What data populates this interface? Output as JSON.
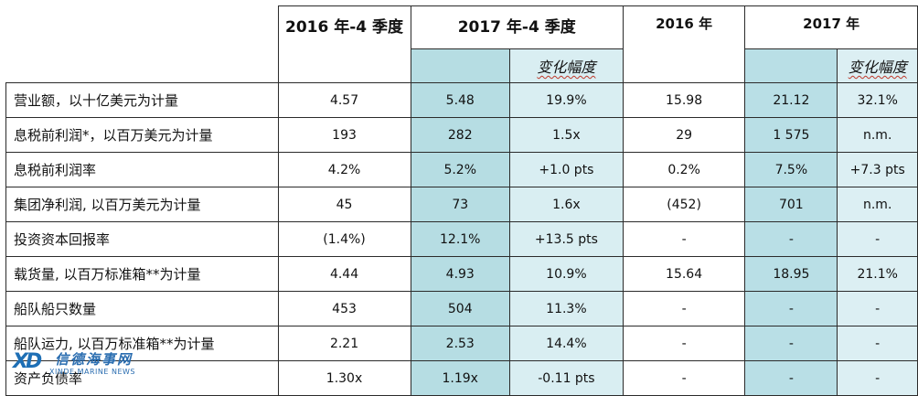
{
  "header": {
    "col_q4_2016": "2016 年-4 季度",
    "col_q4_2017": "2017 年-4 季度",
    "col_2016": "2016 年",
    "col_2017": "2017 年",
    "change_label_q": "变化幅度",
    "change_label_y": "变化幅度"
  },
  "rows": [
    {
      "label": "营业额，以十亿美元为计量",
      "q16": "4.57",
      "q17": "5.48",
      "qchg": "19.9%",
      "y16": "15.98",
      "y17": "21.12",
      "ychg": "32.1%"
    },
    {
      "label": "息税前利润*，以百万美元为计量",
      "q16": "193",
      "q17": "282",
      "qchg": "1.5x",
      "y16": "29",
      "y17": "1 575",
      "ychg": "n.m."
    },
    {
      "label": "息税前利润率",
      "q16": "4.2%",
      "q17": "5.2%",
      "qchg": "+1.0 pts",
      "y16": "0.2%",
      "y17": "7.5%",
      "ychg": "+7.3 pts"
    },
    {
      "label": "集团净利润, 以百万美元为计量",
      "q16": "45",
      "q17": "73",
      "qchg": "1.6x",
      "y16": "(452)",
      "y17": "701",
      "ychg": "n.m."
    },
    {
      "label": "投资资本回报率",
      "q16": "(1.4%)",
      "q17": "12.1%",
      "qchg": "+13.5 pts",
      "y16": "-",
      "y17": "-",
      "ychg": "-"
    },
    {
      "label": "载货量, 以百万标准箱**为计量",
      "q16": "4.44",
      "q17": "4.93",
      "qchg": "10.9%",
      "y16": "15.64",
      "y17": "18.95",
      "ychg": "21.1%"
    },
    {
      "label": "船队船只数量",
      "q16": "453",
      "q17": "504",
      "qchg": "11.3%",
      "y16": "-",
      "y17": "-",
      "ychg": "-"
    },
    {
      "label": "船队运力, 以百万标准箱**为计量",
      "q16": "2.21",
      "q17": "2.53",
      "qchg": "14.4%",
      "y16": "-",
      "y17": "-",
      "ychg": "-"
    },
    {
      "label": "资产负债率",
      "q16": "1.30x",
      "q17": "1.19x",
      "qchg": "-0.11 pts",
      "y16": "-",
      "y17": "-",
      "ychg": "-"
    }
  ],
  "watermark": {
    "logo_text": "XD",
    "cn_text": "信德海事网",
    "en_text": "XINDE MARINE NEWS"
  },
  "colors": {
    "q17_bg": "#b6dde3",
    "qchg_bg": "#d9eef2",
    "y17_bg": "#b9dfe6",
    "ychg_bg": "#dceff3"
  }
}
